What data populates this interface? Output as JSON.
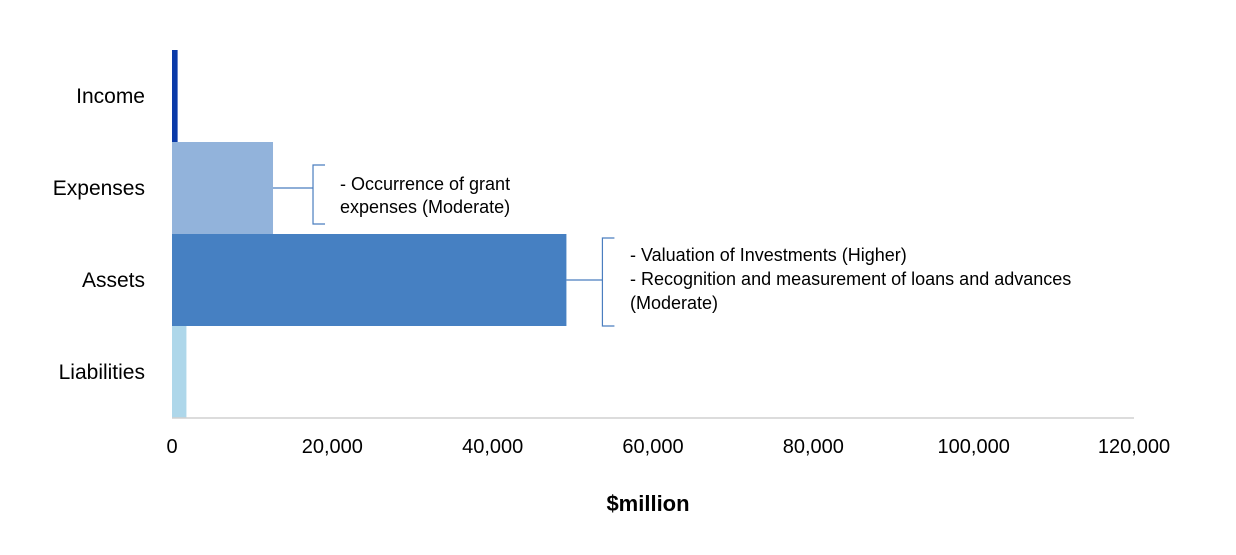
{
  "chart_data": {
    "type": "bar",
    "orientation": "horizontal",
    "categories": [
      "Income",
      "Expenses",
      "Assets",
      "Liabilities"
    ],
    "values": [
      700,
      12600,
      49200,
      1800
    ],
    "colors": [
      "#0a3aa8",
      "#92b3db",
      "#4680c2",
      "#aed7ea"
    ],
    "xlabel": "$million",
    "xlim": [
      0,
      120000
    ],
    "xticks": [
      0,
      20000,
      40000,
      60000,
      80000,
      100000,
      120000
    ],
    "xtick_labels": [
      "0",
      "20,000",
      "40,000",
      "60,000",
      "80,000",
      "100,000",
      "120,000"
    ],
    "grid": false,
    "annotations": [
      {
        "category": "Expenses",
        "lines": [
          "- Occurrence of grant",
          "expenses (Moderate)"
        ]
      },
      {
        "category": "Assets",
        "lines": [
          "- Valuation of Investments (Higher)",
          "- Recognition and measurement of loans and advances",
          "(Moderate)"
        ]
      }
    ]
  }
}
